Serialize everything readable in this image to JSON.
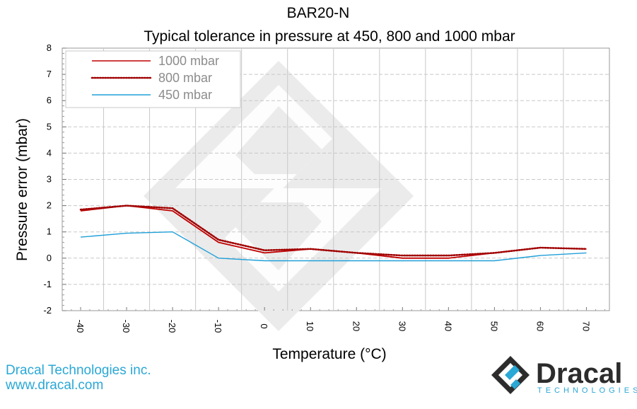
{
  "chart_data": {
    "type": "line",
    "title": "BAR20-N",
    "subtitle": "Typical tolerance in pressure at 450, 800 and 1000 mbar",
    "xlabel": "Temperature (°C)",
    "ylabel": "Pressure error (mbar)",
    "x": [
      -40,
      -30,
      -20,
      -10,
      0,
      10,
      20,
      30,
      40,
      50,
      60,
      70
    ],
    "xlim": [
      -44,
      75
    ],
    "ylim": [
      -2,
      8
    ],
    "yticks": [
      -2,
      -1,
      0,
      1,
      2,
      3,
      4,
      5,
      6,
      7,
      8
    ],
    "grid": true,
    "legend_position": "top-left",
    "series": [
      {
        "name": "1000 mbar",
        "style": "solid",
        "color": "#c00000",
        "values": [
          1.8,
          2.0,
          1.8,
          0.6,
          0.2,
          0.35,
          0.2,
          0.0,
          0.0,
          0.2,
          0.4,
          0.35
        ]
      },
      {
        "name": "800 mbar",
        "style": "dotted",
        "color": "#a00000",
        "values": [
          1.85,
          2.0,
          1.9,
          0.7,
          0.3,
          0.35,
          0.2,
          0.1,
          0.1,
          0.2,
          0.4,
          0.35
        ]
      },
      {
        "name": "450 mbar",
        "style": "solid",
        "color": "#20a0d8",
        "values": [
          0.8,
          0.95,
          1.0,
          0.0,
          -0.1,
          -0.1,
          -0.1,
          -0.1,
          -0.1,
          -0.1,
          0.1,
          0.2
        ]
      }
    ]
  },
  "footer": {
    "company": "Dracal Technologies inc.",
    "website": "www.dracal.com",
    "logo_name": "Dracal",
    "logo_sub": "TECHNOLOGIES"
  },
  "colors": {
    "accent": "#2aa8d6",
    "grid": "#c8c8c8",
    "watermark": "#ebebeb"
  }
}
